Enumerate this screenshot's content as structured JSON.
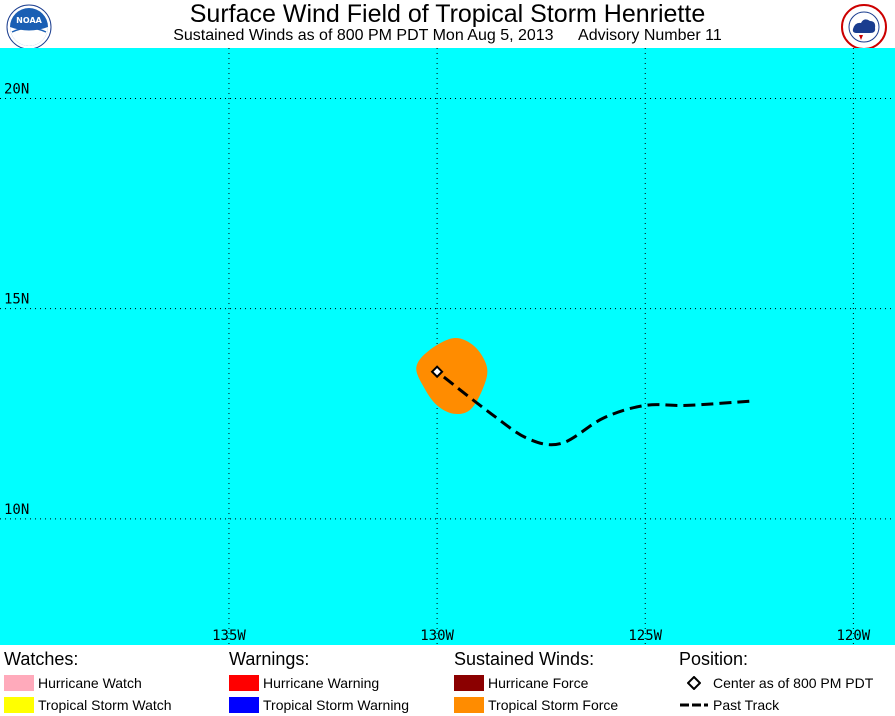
{
  "header": {
    "title": "Surface Wind Field of Tropical Storm Henriette",
    "subtitle_left": "Sustained Winds as of 800 PM PDT Mon Aug 5, 2013",
    "subtitle_right": "Advisory Number 11"
  },
  "logos": {
    "left_icon": "noaa-logo-icon",
    "right_icon": "national-weather-service-logo-icon"
  },
  "map": {
    "background_color": "#00FFFF",
    "lat_labels": [
      "20N",
      "15N",
      "10N"
    ],
    "lon_labels": [
      "135W",
      "130W",
      "125W",
      "120W"
    ],
    "lat_range": [
      7.0,
      21.2
    ],
    "lon_range": [
      -140.5,
      -119.0
    ],
    "gridlines": true,
    "storm_center": {
      "lat": 13.5,
      "lon": -130.0
    },
    "past_track": [
      {
        "lat": 12.8,
        "lon": -122.5
      },
      {
        "lat": 12.7,
        "lon": -124.0
      },
      {
        "lat": 12.7,
        "lon": -125.0
      },
      {
        "lat": 12.4,
        "lon": -126.0
      },
      {
        "lat": 11.8,
        "lon": -127.0
      },
      {
        "lat": 11.9,
        "lon": -127.8
      },
      {
        "lat": 12.5,
        "lon": -128.7
      },
      {
        "lat": 13.5,
        "lon": -130.0
      }
    ],
    "tropical_storm_force_area": [
      {
        "lat": 14.3,
        "lon": -129.6
      },
      {
        "lat": 14.1,
        "lon": -129.1
      },
      {
        "lat": 13.6,
        "lon": -128.8
      },
      {
        "lat": 13.1,
        "lon": -128.9
      },
      {
        "lat": 12.6,
        "lon": -129.2
      },
      {
        "lat": 12.5,
        "lon": -129.6
      },
      {
        "lat": 12.7,
        "lon": -130.0
      },
      {
        "lat": 13.1,
        "lon": -130.3
      },
      {
        "lat": 13.6,
        "lon": -130.5
      },
      {
        "lat": 14.0,
        "lon": -130.2
      }
    ]
  },
  "legend": {
    "watches": {
      "heading": "Watches:",
      "items": [
        {
          "label": "Hurricane Watch",
          "color": "#FFAABB"
        },
        {
          "label": "Tropical Storm Watch",
          "color": "#FFFF00"
        }
      ]
    },
    "warnings": {
      "heading": "Warnings:",
      "items": [
        {
          "label": "Hurricane Warning",
          "color": "#FF0000"
        },
        {
          "label": "Tropical Storm Warning",
          "color": "#0000FF"
        }
      ]
    },
    "winds": {
      "heading": "Sustained Winds:",
      "items": [
        {
          "label": "Hurricane Force",
          "color": "#8B0000"
        },
        {
          "label": "Tropical Storm Force",
          "color": "#FF8C00"
        }
      ]
    },
    "position": {
      "heading": "Position:",
      "items": [
        {
          "label": "Center as of 800 PM PDT",
          "icon": "center-diamond-icon"
        },
        {
          "label": "Past Track",
          "icon": "dashed-track-icon"
        }
      ]
    }
  }
}
